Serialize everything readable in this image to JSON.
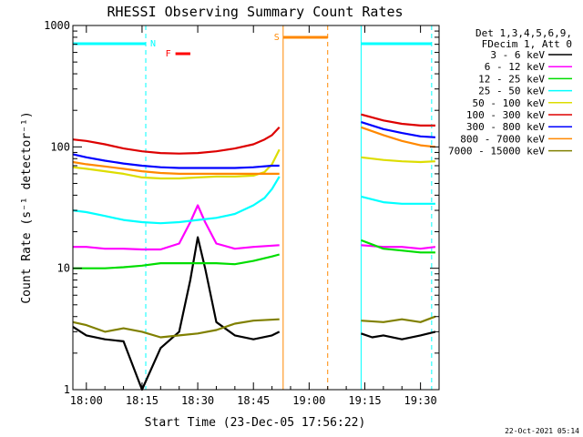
{
  "chart_data": {
    "type": "line",
    "title": "RHESSI Observing Summary Count Rates",
    "xlabel": "Start Time (23-Dec-05 17:56:22)",
    "ylabel": "Count Rate (s⁻¹ detector⁻¹)",
    "y_scale": "log",
    "ylim": [
      1,
      1000
    ],
    "xlim": [
      "17:56:22",
      "19:35:00"
    ],
    "x_ticks": [
      "18:00",
      "18:15",
      "18:30",
      "18:45",
      "19:00",
      "19:15",
      "19:30"
    ],
    "y_ticks": [
      "1",
      "10",
      "100",
      "1000"
    ],
    "grid": false,
    "legend_position": "right",
    "legend_header": [
      "Det 1,3,4,5,6,9,",
      "FDecim 1, Att 0"
    ],
    "series": [
      {
        "name": "3 - 6 keV",
        "color": "#000000",
        "x": [
          "17:56:22",
          "18:00",
          "18:05",
          "18:10",
          "18:15",
          "18:20",
          "18:25",
          "18:28",
          "18:30",
          "18:32",
          "18:35",
          "18:40",
          "18:45",
          "18:50",
          "18:52",
          "19:14",
          "19:17",
          "19:20",
          "19:25",
          "19:30",
          "19:34"
        ],
        "y": [
          3.3,
          2.8,
          2.6,
          2.5,
          1.0,
          2.2,
          3.0,
          8.0,
          18.0,
          10.0,
          3.6,
          2.8,
          2.6,
          2.8,
          3.0,
          2.9,
          2.7,
          2.8,
          2.6,
          2.8,
          3.0
        ]
      },
      {
        "name": "6 - 12 keV",
        "color": "#ff00ff",
        "x": [
          "17:56:22",
          "18:00",
          "18:05",
          "18:10",
          "18:15",
          "18:20",
          "18:25",
          "18:28",
          "18:30",
          "18:32",
          "18:35",
          "18:40",
          "18:45",
          "18:52",
          "19:14",
          "19:20",
          "19:25",
          "19:30",
          "19:34"
        ],
        "y": [
          15,
          15,
          14.5,
          14.5,
          14.3,
          14.3,
          16,
          24,
          33,
          24,
          16,
          14.5,
          15,
          15.5,
          15.5,
          15,
          15,
          14.5,
          15
        ]
      },
      {
        "name": "12 - 25 keV",
        "color": "#00dd00",
        "x": [
          "17:56:22",
          "18:00",
          "18:05",
          "18:10",
          "18:15",
          "18:20",
          "18:25",
          "18:30",
          "18:35",
          "18:40",
          "18:45",
          "18:50",
          "18:52",
          "19:14",
          "19:20",
          "19:25",
          "19:30",
          "19:34"
        ],
        "y": [
          10,
          10,
          10,
          10.2,
          10.5,
          11,
          11,
          11,
          11,
          10.8,
          11.5,
          12.5,
          13,
          17,
          14.5,
          14,
          13.5,
          13.5
        ]
      },
      {
        "name": "25 - 50 keV",
        "color": "#00ffff",
        "x": [
          "17:56:22",
          "18:00",
          "18:05",
          "18:10",
          "18:15",
          "18:20",
          "18:25",
          "18:30",
          "18:35",
          "18:40",
          "18:45",
          "18:48",
          "18:50",
          "18:52",
          "19:14",
          "19:20",
          "19:25",
          "19:30",
          "19:34"
        ],
        "y": [
          30,
          29,
          27,
          25,
          24,
          23.5,
          24,
          25,
          26,
          28,
          33,
          38,
          45,
          57,
          39,
          35,
          34,
          34,
          34
        ]
      },
      {
        "name": "50 - 100 keV",
        "color": "#dddd00",
        "x": [
          "17:56:22",
          "18:00",
          "18:05",
          "18:10",
          "18:15",
          "18:20",
          "18:25",
          "18:30",
          "18:35",
          "18:40",
          "18:45",
          "18:48",
          "18:50",
          "18:52",
          "19:14",
          "19:20",
          "19:25",
          "19:30",
          "19:34"
        ],
        "y": [
          68,
          66,
          63,
          60,
          56,
          55,
          55,
          56,
          57,
          57,
          58,
          62,
          72,
          95,
          82,
          78,
          76,
          75,
          76
        ]
      },
      {
        "name": "100 - 300 keV",
        "color": "#dd0000",
        "x": [
          "17:56:22",
          "18:00",
          "18:05",
          "18:10",
          "18:15",
          "18:20",
          "18:25",
          "18:30",
          "18:35",
          "18:40",
          "18:45",
          "18:48",
          "18:50",
          "18:52",
          "19:14",
          "19:20",
          "19:25",
          "19:30",
          "19:34"
        ],
        "y": [
          115,
          112,
          105,
          97,
          92,
          89,
          88,
          89,
          92,
          97,
          105,
          115,
          125,
          145,
          185,
          165,
          155,
          150,
          150
        ]
      },
      {
        "name": "300 - 800 keV",
        "color": "#0000ff",
        "x": [
          "17:56:22",
          "18:00",
          "18:05",
          "18:10",
          "18:15",
          "18:20",
          "18:25",
          "18:30",
          "18:35",
          "18:40",
          "18:45",
          "18:50",
          "18:52",
          "19:14",
          "19:20",
          "19:25",
          "19:30",
          "19:34"
        ],
        "y": [
          87,
          82,
          77,
          73,
          70,
          68,
          67,
          67,
          67,
          67,
          68,
          70,
          70,
          160,
          140,
          130,
          122,
          120
        ]
      },
      {
        "name": "800 - 7000 keV",
        "color": "#ff8800",
        "x": [
          "17:56:22",
          "18:00",
          "18:05",
          "18:10",
          "18:15",
          "18:20",
          "18:25",
          "18:30",
          "18:35",
          "18:40",
          "18:45",
          "18:50",
          "18:52",
          "19:14",
          "19:20",
          "19:25",
          "19:30",
          "19:34"
        ],
        "y": [
          75,
          72,
          69,
          66,
          63,
          61,
          60,
          60,
          60,
          60,
          60,
          60,
          60,
          145,
          125,
          112,
          103,
          100
        ]
      },
      {
        "name": "7000 - 15000 keV",
        "color": "#808000",
        "x": [
          "17:56:22",
          "18:00",
          "18:05",
          "18:10",
          "18:15",
          "18:20",
          "18:25",
          "18:30",
          "18:35",
          "18:40",
          "18:45",
          "18:52",
          "19:14",
          "19:20",
          "19:25",
          "19:30",
          "19:34"
        ],
        "y": [
          3.6,
          3.4,
          3.0,
          3.2,
          3.0,
          2.7,
          2.8,
          2.9,
          3.1,
          3.5,
          3.7,
          3.8,
          3.7,
          3.6,
          3.8,
          3.6,
          4.0
        ]
      }
    ],
    "annotations": {
      "night_label": "N",
      "saa_label": "S",
      "flare_label": "F",
      "night_intervals": [
        [
          "17:56:22",
          "18:16"
        ],
        [
          "19:14",
          "19:33"
        ]
      ],
      "saa_interval": [
        "18:53",
        "19:05"
      ],
      "flare_interval": [
        "18:24",
        "18:28"
      ],
      "gap_interval": [
        "18:53",
        "19:09"
      ]
    },
    "footer_date": "22-Oct-2021 05:14"
  }
}
